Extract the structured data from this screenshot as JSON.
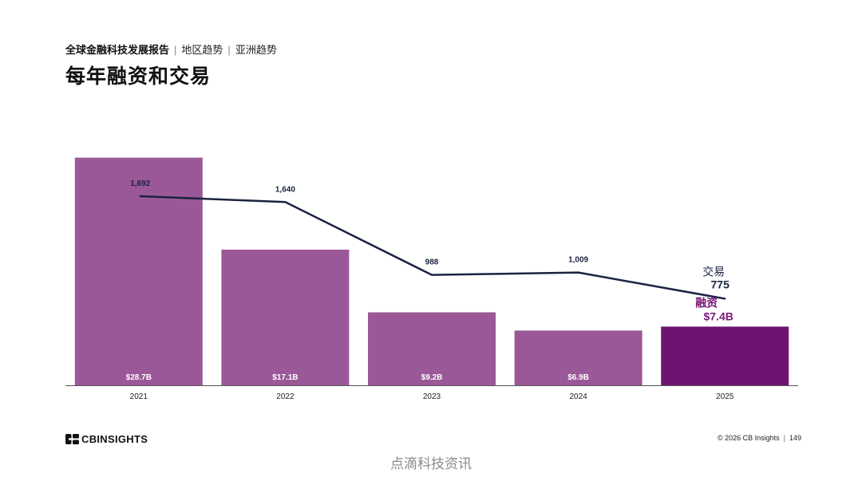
{
  "header": {
    "breadcrumb": [
      "全球金融科技发展报告",
      "地区趋势",
      "亚洲趋势"
    ],
    "title": "每年融资和交易"
  },
  "chart_data": {
    "type": "bar",
    "title": "",
    "categories": [
      "2021",
      "2022",
      "2023",
      "2024",
      "2025"
    ],
    "series": [
      {
        "name": "融资",
        "type": "bar",
        "unit": "$B",
        "values": [
          28.7,
          17.1,
          9.2,
          6.9,
          7.4
        ],
        "labels": [
          "$28.7B",
          "$17.1B",
          "$9.2B",
          "$6.9B",
          "$7.4B"
        ]
      },
      {
        "name": "交易",
        "type": "line",
        "values": [
          1692,
          1640,
          988,
          1009,
          775
        ],
        "labels": [
          "1,692",
          "1,640",
          "988",
          "1,009",
          "775"
        ]
      }
    ],
    "xlabel": "",
    "ylabel": "",
    "ylim_bars": [
      0,
      35.5
    ],
    "ylim_line": [
      0,
      2520
    ],
    "grid": false,
    "legend": "inline-labels-right",
    "colors": {
      "bar": "#9b5898",
      "bar_highlight": "#6e1470",
      "line": "#1a2340",
      "legend_bar": "#7a1a79"
    }
  },
  "footer": {
    "logo_text": "CBINSIGHTS",
    "copyright": "© 2026 CB Insights",
    "page_number": "149"
  },
  "watermark": "点滴科技资讯"
}
